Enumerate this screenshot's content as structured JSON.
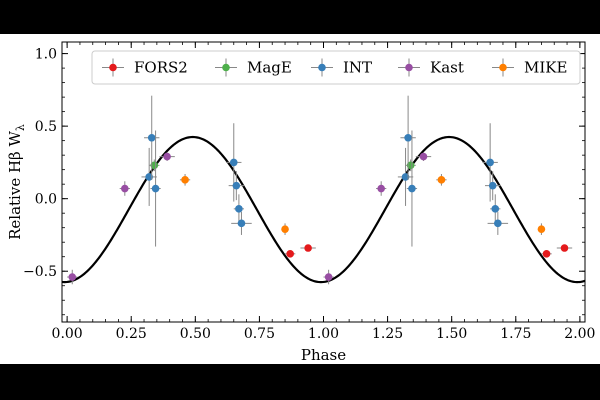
{
  "chart_data": {
    "type": "scatter",
    "xlabel": "Phase",
    "ylabel": "Relative Hβ W",
    "ylabel_subscript": "λ",
    "xlim": [
      -0.02,
      2.02
    ],
    "ylim": [
      -0.85,
      1.08
    ],
    "xticks": [
      0.0,
      0.25,
      0.5,
      0.75,
      1.0,
      1.25,
      1.5,
      1.75,
      2.0
    ],
    "xtick_labels": [
      "0.00",
      "0.25",
      "0.50",
      "0.75",
      "1.00",
      "1.25",
      "1.50",
      "1.75",
      "2.00"
    ],
    "yticks": [
      -0.5,
      0.0,
      0.5,
      1.0
    ],
    "ytick_labels": [
      "−0.5",
      "0.0",
      "0.5",
      "1.0"
    ],
    "legend_position": "top-right",
    "series": [
      {
        "name": "FORS2",
        "color": "#e41a1c",
        "points": [
          {
            "x": 0.87,
            "y": -0.38,
            "xerr": 0.02,
            "yerr": 0.02
          },
          {
            "x": 0.94,
            "y": -0.34,
            "xerr": 0.03,
            "yerr": 0.02
          },
          {
            "x": 1.87,
            "y": -0.38,
            "xerr": 0.02,
            "yerr": 0.02
          },
          {
            "x": 1.94,
            "y": -0.34,
            "xerr": 0.03,
            "yerr": 0.02
          }
        ]
      },
      {
        "name": "MagE",
        "color": "#4daf4a",
        "points": [
          {
            "x": 0.34,
            "y": 0.23,
            "xerr": 0.02,
            "yerr": 0.04
          },
          {
            "x": 1.34,
            "y": 0.23,
            "xerr": 0.02,
            "yerr": 0.04
          }
        ]
      },
      {
        "name": "INT",
        "color": "#377eb8",
        "points": [
          {
            "x": 0.32,
            "y": 0.15,
            "xerr": 0.03,
            "yerr": 0.2
          },
          {
            "x": 0.33,
            "y": 0.42,
            "xerr": 0.03,
            "yerr": 0.29
          },
          {
            "x": 0.345,
            "y": 0.07,
            "xerr": 0.02,
            "yerr": 0.4
          },
          {
            "x": 0.65,
            "y": 0.25,
            "xerr": 0.03,
            "yerr": 0.27
          },
          {
            "x": 0.66,
            "y": 0.09,
            "xerr": 0.03,
            "yerr": 0.1
          },
          {
            "x": 0.67,
            "y": -0.07,
            "xerr": 0.02,
            "yerr": 0.1
          },
          {
            "x": 0.68,
            "y": -0.17,
            "xerr": 0.04,
            "yerr": 0.08
          },
          {
            "x": 1.32,
            "y": 0.15,
            "xerr": 0.03,
            "yerr": 0.2
          },
          {
            "x": 1.33,
            "y": 0.42,
            "xerr": 0.03,
            "yerr": 0.29
          },
          {
            "x": 1.345,
            "y": 0.07,
            "xerr": 0.02,
            "yerr": 0.4
          },
          {
            "x": 1.65,
            "y": 0.25,
            "xerr": 0.03,
            "yerr": 0.27
          },
          {
            "x": 1.66,
            "y": 0.09,
            "xerr": 0.03,
            "yerr": 0.1
          },
          {
            "x": 1.67,
            "y": -0.07,
            "xerr": 0.02,
            "yerr": 0.1
          },
          {
            "x": 1.68,
            "y": -0.17,
            "xerr": 0.04,
            "yerr": 0.08
          }
        ]
      },
      {
        "name": "Kast",
        "color": "#984ea3",
        "points": [
          {
            "x": 0.02,
            "y": -0.54,
            "xerr": 0.02,
            "yerr": 0.05
          },
          {
            "x": 0.225,
            "y": 0.07,
            "xerr": 0.02,
            "yerr": 0.05
          },
          {
            "x": 0.39,
            "y": 0.29,
            "xerr": 0.03,
            "yerr": 0.03
          },
          {
            "x": 1.02,
            "y": -0.54,
            "xerr": 0.02,
            "yerr": 0.05
          },
          {
            "x": 1.225,
            "y": 0.07,
            "xerr": 0.02,
            "yerr": 0.05
          },
          {
            "x": 1.39,
            "y": 0.29,
            "xerr": 0.03,
            "yerr": 0.03
          }
        ]
      },
      {
        "name": "MIKE",
        "color": "#ff7f00",
        "points": [
          {
            "x": 0.46,
            "y": 0.13,
            "xerr": 0.02,
            "yerr": 0.04
          },
          {
            "x": 0.85,
            "y": -0.21,
            "xerr": 0.01,
            "yerr": 0.04
          },
          {
            "x": 1.46,
            "y": 0.13,
            "xerr": 0.02,
            "yerr": 0.04
          },
          {
            "x": 1.85,
            "y": -0.21,
            "xerr": 0.01,
            "yerr": 0.04
          }
        ]
      }
    ],
    "model_curve": {
      "type": "sinusoid",
      "amplitude": 0.5,
      "offset": -0.075,
      "peak_phase": 0.49,
      "period": 1.0,
      "x_range": [
        -0.02,
        2.02
      ],
      "color": "#000000"
    }
  }
}
